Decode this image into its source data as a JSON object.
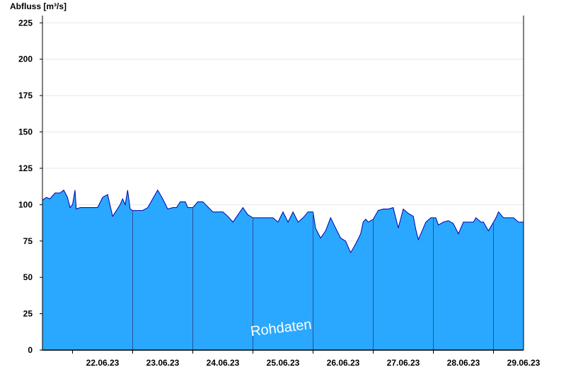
{
  "chart_data": {
    "type": "area",
    "ylabel": "Abfluss [m³/s]",
    "ylim": [
      0,
      230
    ],
    "yticks": [
      0,
      25,
      50,
      75,
      100,
      125,
      150,
      175,
      200,
      225
    ],
    "xrange": [
      "21.06.23 12:00",
      "29.06.23 12:00"
    ],
    "x_tick_labels": [
      "22.06.23",
      "23.06.23",
      "24.06.23",
      "25.06.23",
      "26.06.23",
      "27.06.23",
      "28.06.23",
      "29.06.23"
    ],
    "day_boundaries": [
      "22.06.23 00:00",
      "23.06.23 00:00",
      "24.06.23 00:00",
      "25.06.23 00:00",
      "26.06.23 00:00",
      "27.06.23 00:00",
      "28.06.23 00:00",
      "29.06.23 00:00"
    ],
    "grid": true,
    "fill_color": "#2aa8ff",
    "line_color": "#0000aa",
    "annotation": "Rohdaten",
    "series": [
      {
        "x": [
          "21.06.23 12:00",
          "21.06.23 13:30",
          "21.06.23 15:00",
          "21.06.23 17:00",
          "21.06.23 19:00",
          "21.06.23 20:30",
          "21.06.23 22:00",
          "21.06.23 23:00",
          "22.06.23 00:00",
          "22.06.23 01:00",
          "22.06.23 01:30",
          "22.06.23 03:00",
          "22.06.23 05:00",
          "22.06.23 08:00",
          "22.06.23 10:00",
          "22.06.23 12:00",
          "22.06.23 14:00",
          "22.06.23 16:00",
          "22.06.23 17:30",
          "22.06.23 19:00",
          "22.06.23 20:00",
          "22.06.23 21:00",
          "22.06.23 22:00",
          "22.06.23 23:00",
          "23.06.23 00:00",
          "23.06.23 01:00",
          "23.06.23 02:30",
          "23.06.23 04:00",
          "23.06.23 06:00",
          "23.06.23 08:00",
          "23.06.23 10:00",
          "23.06.23 12:00",
          "23.06.23 14:00",
          "23.06.23 16:00",
          "23.06.23 17:30",
          "23.06.23 19:00",
          "23.06.23 20:00",
          "23.06.23 21:00",
          "23.06.23 22:00",
          "23.06.23 23:00",
          "24.06.23 00:00",
          "24.06.23 02:00",
          "24.06.23 04:00",
          "24.06.23 08:00",
          "24.06.23 10:00",
          "24.06.23 12:00",
          "24.06.23 14:00",
          "24.06.23 16:00",
          "24.06.23 18:00",
          "24.06.23 20:00",
          "24.06.23 22:00",
          "25.06.23 00:00",
          "25.06.23 02:00",
          "25.06.23 04:00",
          "25.06.23 06:00",
          "25.06.23 08:00",
          "25.06.23 10:00",
          "25.06.23 12:00",
          "25.06.23 14:00",
          "25.06.23 16:00",
          "25.06.23 18:00",
          "25.06.23 20:00",
          "25.06.23 22:00",
          "26.06.23 00:00",
          "26.06.23 01:00",
          "26.06.23 03:00",
          "26.06.23 05:00",
          "26.06.23 07:00",
          "26.06.23 09:00",
          "26.06.23 11:00",
          "26.06.23 13:00",
          "26.06.23 15:00",
          "26.06.23 17:00",
          "26.06.23 19:00",
          "26.06.23 20:00",
          "26.06.23 21:00",
          "26.06.23 22:00",
          "27.06.23 00:00",
          "27.06.23 02:00",
          "27.06.23 04:00",
          "27.06.23 06:00",
          "27.06.23 08:00",
          "27.06.23 10:00",
          "27.06.23 12:00",
          "27.06.23 14:00",
          "27.06.23 16:00",
          "27.06.23 17:00",
          "27.06.23 18:00",
          "27.06.23 19:30",
          "27.06.23 21:00",
          "27.06.23 23:00",
          "28.06.23 01:00",
          "28.06.23 02:00",
          "28.06.23 04:00",
          "28.06.23 06:00",
          "28.06.23 08:00",
          "28.06.23 10:00",
          "28.06.23 12:00",
          "28.06.23 14:00",
          "28.06.23 16:00",
          "28.06.23 17:00",
          "28.06.23 19:00",
          "28.06.23 20:00",
          "28.06.23 22:00",
          "29.06.23 00:00",
          "29.06.23 01:00",
          "29.06.23 02:00",
          "29.06.23 04:00",
          "29.06.23 06:00",
          "29.06.23 08:00",
          "29.06.23 10:00",
          "29.06.23 12:00"
        ],
        "y": [
          103,
          105,
          104,
          108,
          108,
          110,
          105,
          98,
          100,
          110,
          97,
          98,
          98,
          98,
          98,
          105,
          107,
          92,
          96,
          100,
          104,
          100,
          110,
          97,
          96,
          96,
          96,
          96,
          98,
          104,
          110,
          104,
          97,
          98,
          98,
          102,
          102,
          102,
          98,
          98,
          98,
          102,
          102,
          95,
          95,
          95,
          92,
          88,
          93,
          98,
          93,
          91,
          91,
          91,
          91,
          91,
          88,
          95,
          88,
          95,
          88,
          91,
          95,
          95,
          84,
          77,
          82,
          91,
          84,
          77,
          75,
          67,
          73,
          80,
          88,
          90,
          88,
          90,
          96,
          97,
          97,
          98,
          84,
          97,
          94,
          92,
          83,
          76,
          82,
          88,
          91,
          91,
          86,
          88,
          89,
          87,
          80,
          88,
          88,
          88,
          91,
          88,
          88,
          82,
          88,
          91,
          95,
          91,
          91,
          91,
          88,
          88
        ]
      }
    ]
  }
}
